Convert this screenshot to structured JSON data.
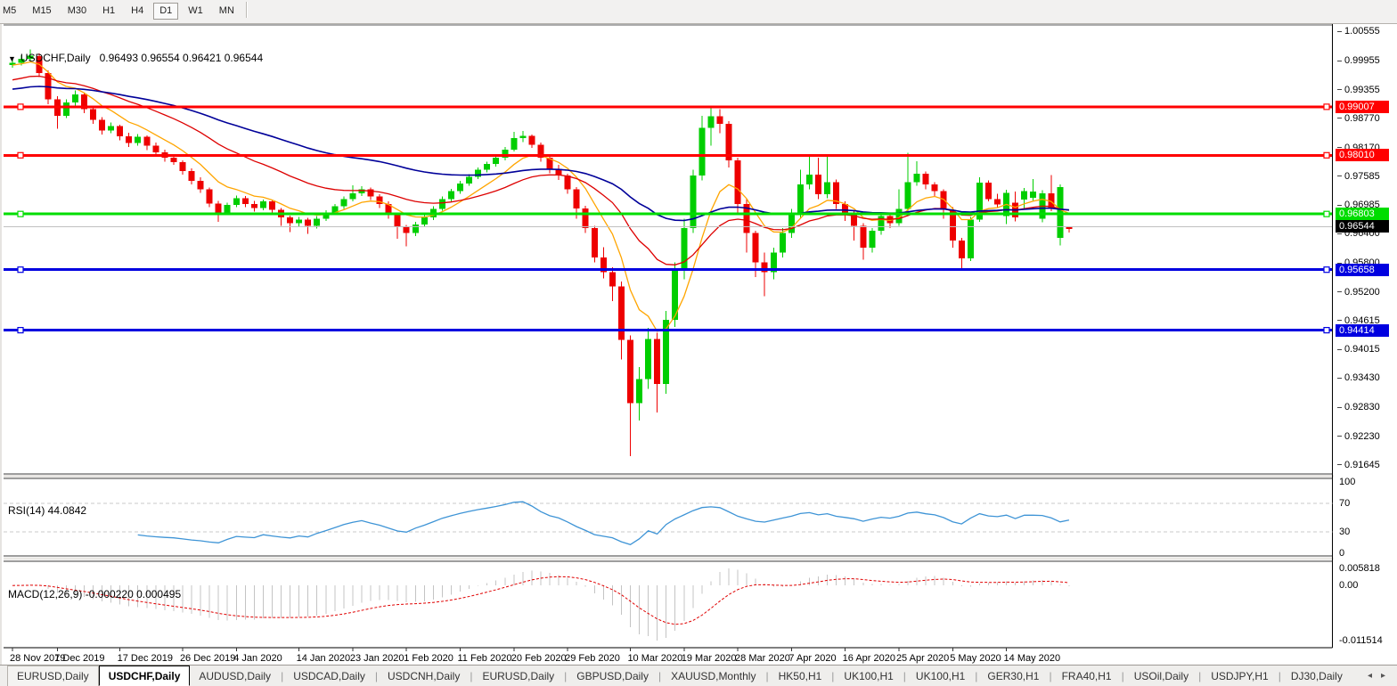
{
  "toolbar": {
    "timeframes": [
      "M5",
      "M15",
      "M30",
      "H1",
      "H4",
      "D1",
      "W1",
      "MN"
    ],
    "active_timeframe": "D1"
  },
  "title": {
    "marker_icon": "▼",
    "symbol": "USDCHF,Daily",
    "ohlc": "0.96493 0.96554 0.96421 0.96544"
  },
  "chart_data": {
    "type": "candlestick",
    "symbol": "USDCHF",
    "timeframe": "Daily",
    "ohlc_display": {
      "open": "0.96493",
      "high": "0.96554",
      "low": "0.96421",
      "close": "0.96544"
    },
    "price_axis": {
      "max": 1.0069,
      "ticks": [
        "1.00555",
        "0.99955",
        "0.99355",
        "0.98770",
        "0.98170",
        "0.97585",
        "0.96985",
        "0.96400",
        "0.95800",
        "0.95200",
        "0.94615",
        "0.94015",
        "0.93430",
        "0.92830",
        "0.92230",
        "0.91645"
      ]
    },
    "colors": {
      "bull": "#00ce00",
      "bear": "#ee0000",
      "wick_up": "#00ce00",
      "wick_down": "#ee0000",
      "current_line": "#c0c0c0",
      "current_badge": "#000000",
      "pane_border": "#3c3c3c",
      "rsi_line": "#3e94d6",
      "rsi_levels_color": "#c8c8c8",
      "macd_hist": "#c4c4c4",
      "macd_signal": "#e00000"
    },
    "hlines": [
      {
        "price": 0.99007,
        "label": "0.99007",
        "color": "#ff0000",
        "width": 3
      },
      {
        "price": 0.9801,
        "label": "0.98010",
        "color": "#ff0000",
        "width": 3
      },
      {
        "price": 0.96803,
        "label": "0.96803",
        "color": "#00dd00",
        "width": 3
      },
      {
        "price": 0.95658,
        "label": "0.95658",
        "color": "#0000e0",
        "width": 3
      },
      {
        "price": 0.94414,
        "label": "0.94414",
        "color": "#0000e0",
        "width": 3
      }
    ],
    "current_price": {
      "value": 0.96544,
      "label": "0.96544"
    },
    "moving_averages": [
      {
        "period": 8,
        "seed": 0.9985,
        "color": "#ffa500",
        "width": 1.3
      },
      {
        "period": 24,
        "seed": 0.9953,
        "color": "#dd0000",
        "width": 1.3
      },
      {
        "period": 55,
        "seed": 0.9935,
        "color": "#000099",
        "width": 1.6
      }
    ],
    "rsi": {
      "label": "RSI(14) 44.0842",
      "period": 14,
      "value": "44.0842",
      "levels": [
        70,
        30
      ],
      "scale_labels": [
        {
          "v": 100,
          "text": "100"
        },
        {
          "v": 70,
          "text": "70"
        },
        {
          "v": 30,
          "text": "30"
        },
        {
          "v": 0,
          "text": "0"
        }
      ]
    },
    "macd": {
      "label": "MACD(12,26,9) -0.000220 0.000495",
      "fast": 12,
      "slow": 26,
      "signal": 9,
      "values": [
        "-0.000220",
        "0.000495"
      ],
      "scale_labels": {
        "max": "0.005818",
        "zero": "0.00",
        "min": "-0.011514"
      }
    },
    "date_labels": [
      {
        "text": "28 Nov 2019",
        "bar": 0
      },
      {
        "text": "7 Dec 2019",
        "bar": 5
      },
      {
        "text": "17 Dec 2019",
        "bar": 12
      },
      {
        "text": "26 Dec 2019",
        "bar": 19
      },
      {
        "text": "4 Jan 2020",
        "bar": 25
      },
      {
        "text": "14 Jan 2020",
        "bar": 32
      },
      {
        "text": "23 Jan 2020",
        "bar": 38
      },
      {
        "text": "1 Feb 2020",
        "bar": 44
      },
      {
        "text": "11 Feb 2020",
        "bar": 50
      },
      {
        "text": "20 Feb 2020",
        "bar": 56
      },
      {
        "text": "29 Feb 2020",
        "bar": 62
      },
      {
        "text": "10 Mar 2020",
        "bar": 69
      },
      {
        "text": "19 Mar 2020",
        "bar": 75
      },
      {
        "text": "28 Mar 2020",
        "bar": 81
      },
      {
        "text": "7 Apr 2020",
        "bar": 87
      },
      {
        "text": "16 Apr 2020",
        "bar": 93
      },
      {
        "text": "25 Apr 2020",
        "bar": 99
      },
      {
        "text": "5 May 2020",
        "bar": 105
      },
      {
        "text": "14 May 2020",
        "bar": 111
      }
    ],
    "color_overrides": {
      "117": "up",
      "118": "down"
    },
    "candles": [
      [
        0.9987,
        1.0003,
        0.9981,
        0.9991
      ],
      [
        0.9991,
        1.0007,
        0.9986,
        0.9999
      ],
      [
        0.9999,
        1.0019,
        0.9995,
        1.0006
      ],
      [
        1.0005,
        1.001,
        0.9962,
        0.997
      ],
      [
        0.997,
        0.9976,
        0.9906,
        0.9916
      ],
      [
        0.9916,
        0.9922,
        0.9856,
        0.9882
      ],
      [
        0.9882,
        0.9916,
        0.9878,
        0.991
      ],
      [
        0.991,
        0.9934,
        0.9902,
        0.9926
      ],
      [
        0.9926,
        0.9929,
        0.9888,
        0.9896
      ],
      [
        0.9896,
        0.9903,
        0.9866,
        0.9874
      ],
      [
        0.9874,
        0.9879,
        0.9844,
        0.9852
      ],
      [
        0.9852,
        0.9868,
        0.9846,
        0.9861
      ],
      [
        0.9861,
        0.9864,
        0.9832,
        0.984
      ],
      [
        0.984,
        0.9847,
        0.9818,
        0.9826
      ],
      [
        0.9826,
        0.9845,
        0.9821,
        0.9839
      ],
      [
        0.9839,
        0.9842,
        0.9812,
        0.9821
      ],
      [
        0.9821,
        0.9827,
        0.9799,
        0.9807
      ],
      [
        0.9807,
        0.9813,
        0.9788,
        0.9796
      ],
      [
        0.9796,
        0.9803,
        0.9781,
        0.9787
      ],
      [
        0.9787,
        0.9791,
        0.9761,
        0.9769
      ],
      [
        0.9769,
        0.9774,
        0.9741,
        0.9748
      ],
      [
        0.9748,
        0.9756,
        0.9724,
        0.9731
      ],
      [
        0.9731,
        0.9735,
        0.9694,
        0.9702
      ],
      [
        0.9702,
        0.9707,
        0.9664,
        0.9683
      ],
      [
        0.9683,
        0.9704,
        0.9678,
        0.9699
      ],
      [
        0.9699,
        0.9718,
        0.9694,
        0.9713
      ],
      [
        0.9713,
        0.9717,
        0.9694,
        0.9701
      ],
      [
        0.9701,
        0.9707,
        0.9685,
        0.9693
      ],
      [
        0.9693,
        0.971,
        0.9688,
        0.9706
      ],
      [
        0.9706,
        0.9709,
        0.9682,
        0.9689
      ],
      [
        0.9689,
        0.9693,
        0.9656,
        0.9673
      ],
      [
        0.9673,
        0.9677,
        0.9643,
        0.9661
      ],
      [
        0.9661,
        0.9674,
        0.9654,
        0.9669
      ],
      [
        0.9669,
        0.9672,
        0.9639,
        0.9656
      ],
      [
        0.9656,
        0.9676,
        0.965,
        0.9671
      ],
      [
        0.9671,
        0.9688,
        0.9666,
        0.9683
      ],
      [
        0.9683,
        0.9701,
        0.9678,
        0.9696
      ],
      [
        0.9696,
        0.9716,
        0.9691,
        0.9711
      ],
      [
        0.9711,
        0.9739,
        0.9706,
        0.9723
      ],
      [
        0.9723,
        0.9737,
        0.9717,
        0.9731
      ],
      [
        0.9731,
        0.9735,
        0.9709,
        0.9716
      ],
      [
        0.9716,
        0.9721,
        0.9693,
        0.9701
      ],
      [
        0.9701,
        0.9706,
        0.9671,
        0.9679
      ],
      [
        0.9679,
        0.9683,
        0.9629,
        0.9653
      ],
      [
        0.9653,
        0.9658,
        0.9614,
        0.9641
      ],
      [
        0.9641,
        0.9664,
        0.9635,
        0.9659
      ],
      [
        0.9659,
        0.9679,
        0.9654,
        0.9673
      ],
      [
        0.9673,
        0.9696,
        0.9668,
        0.9691
      ],
      [
        0.9691,
        0.9716,
        0.9687,
        0.9711
      ],
      [
        0.9711,
        0.9732,
        0.9706,
        0.9727
      ],
      [
        0.9727,
        0.9748,
        0.9722,
        0.9743
      ],
      [
        0.9743,
        0.9762,
        0.9738,
        0.9757
      ],
      [
        0.9757,
        0.9776,
        0.9752,
        0.9771
      ],
      [
        0.9771,
        0.9788,
        0.9766,
        0.9783
      ],
      [
        0.9783,
        0.9801,
        0.9778,
        0.9796
      ],
      [
        0.9796,
        0.9818,
        0.9791,
        0.9813
      ],
      [
        0.9813,
        0.9849,
        0.9809,
        0.9836
      ],
      [
        0.9836,
        0.9851,
        0.9828,
        0.9841
      ],
      [
        0.9841,
        0.9844,
        0.9816,
        0.9823
      ],
      [
        0.9823,
        0.9827,
        0.9788,
        0.9796
      ],
      [
        0.9796,
        0.9801,
        0.9764,
        0.9773
      ],
      [
        0.9773,
        0.9781,
        0.975,
        0.9759
      ],
      [
        0.9759,
        0.9763,
        0.9722,
        0.9731
      ],
      [
        0.9731,
        0.9736,
        0.9671,
        0.9692
      ],
      [
        0.9692,
        0.9697,
        0.9641,
        0.9651
      ],
      [
        0.9651,
        0.9656,
        0.9581,
        0.9591
      ],
      [
        0.9591,
        0.9612,
        0.9548,
        0.9561
      ],
      [
        0.9561,
        0.9571,
        0.9501,
        0.9531
      ],
      [
        0.9531,
        0.9541,
        0.9381,
        0.9421
      ],
      [
        0.9421,
        0.9431,
        0.9182,
        0.9291
      ],
      [
        0.9291,
        0.9366,
        0.9256,
        0.9341
      ],
      [
        0.9341,
        0.9446,
        0.9321,
        0.9423
      ],
      [
        0.9423,
        0.9436,
        0.9272,
        0.9331
      ],
      [
        0.9331,
        0.9481,
        0.9311,
        0.9463
      ],
      [
        0.9463,
        0.9581,
        0.9448,
        0.9563
      ],
      [
        0.9563,
        0.9671,
        0.9546,
        0.9651
      ],
      [
        0.9651,
        0.9771,
        0.9641,
        0.9759
      ],
      [
        0.9759,
        0.9882,
        0.9749,
        0.9857
      ],
      [
        0.9857,
        0.9901,
        0.9821,
        0.9881
      ],
      [
        0.9881,
        0.9896,
        0.9846,
        0.9866
      ],
      [
        0.9866,
        0.9871,
        0.9776,
        0.9791
      ],
      [
        0.9791,
        0.9796,
        0.9681,
        0.9701
      ],
      [
        0.9701,
        0.9711,
        0.9601,
        0.9641
      ],
      [
        0.9641,
        0.9646,
        0.9551,
        0.9581
      ],
      [
        0.9581,
        0.9601,
        0.9511,
        0.9561
      ],
      [
        0.9561,
        0.9611,
        0.9546,
        0.9601
      ],
      [
        0.9601,
        0.9651,
        0.9591,
        0.9641
      ],
      [
        0.9641,
        0.9691,
        0.9631,
        0.9681
      ],
      [
        0.9681,
        0.9771,
        0.9671,
        0.9741
      ],
      [
        0.9741,
        0.9801,
        0.9731,
        0.9761
      ],
      [
        0.9761,
        0.9796,
        0.9711,
        0.9721
      ],
      [
        0.9721,
        0.9802,
        0.9713,
        0.9746
      ],
      [
        0.9746,
        0.9751,
        0.9691,
        0.9701
      ],
      [
        0.9701,
        0.9706,
        0.9666,
        0.9681
      ],
      [
        0.9681,
        0.9686,
        0.9626,
        0.9656
      ],
      [
        0.9656,
        0.9661,
        0.9586,
        0.9611
      ],
      [
        0.9611,
        0.9651,
        0.9601,
        0.9646
      ],
      [
        0.9646,
        0.9681,
        0.9638,
        0.9676
      ],
      [
        0.9676,
        0.9681,
        0.9651,
        0.9661
      ],
      [
        0.9661,
        0.9731,
        0.9656,
        0.9691
      ],
      [
        0.9691,
        0.9806,
        0.9686,
        0.9746
      ],
      [
        0.9746,
        0.9789,
        0.9738,
        0.9763
      ],
      [
        0.9763,
        0.9768,
        0.9731,
        0.9741
      ],
      [
        0.9741,
        0.9746,
        0.9716,
        0.9727
      ],
      [
        0.9727,
        0.9731,
        0.9671,
        0.9689
      ],
      [
        0.9689,
        0.9694,
        0.9611,
        0.9626
      ],
      [
        0.9626,
        0.9631,
        0.9569,
        0.9589
      ],
      [
        0.9589,
        0.9674,
        0.9584,
        0.9669
      ],
      [
        0.9669,
        0.9756,
        0.9664,
        0.9745
      ],
      [
        0.9745,
        0.9749,
        0.9706,
        0.9711
      ],
      [
        0.9711,
        0.9722,
        0.9693,
        0.97
      ],
      [
        0.9676,
        0.973,
        0.966,
        0.9724
      ],
      [
        0.9704,
        0.9726,
        0.9665,
        0.9673
      ],
      [
        0.971,
        0.9734,
        0.9692,
        0.9727
      ],
      [
        0.9714,
        0.9752,
        0.9708,
        0.9726
      ],
      [
        0.9671,
        0.9729,
        0.9663,
        0.9723
      ],
      [
        0.9723,
        0.976,
        0.9686,
        0.9691
      ],
      [
        0.9736,
        0.9741,
        0.9616,
        0.9631
      ],
      [
        0.96493,
        0.96554,
        0.96421,
        0.96544
      ]
    ]
  },
  "tabbar": {
    "tabs": [
      {
        "label": "EURUSD,Daily",
        "boxed": true
      },
      {
        "label": "USDCHF,Daily",
        "active": true
      },
      {
        "label": "AUDUSD,Daily"
      },
      {
        "label": "USDCAD,Daily"
      },
      {
        "label": "USDCNH,Daily"
      },
      {
        "label": "EURUSD,Daily"
      },
      {
        "label": "GBPUSD,Daily"
      },
      {
        "label": "XAUUSD,Monthly"
      },
      {
        "label": "HK50,H1"
      },
      {
        "label": "UK100,H1"
      },
      {
        "label": "UK100,H1"
      },
      {
        "label": "GER30,H1"
      },
      {
        "label": "FRA40,H1"
      },
      {
        "label": "USOil,Daily"
      },
      {
        "label": "USDJPY,H1"
      },
      {
        "label": "DJ30,Daily"
      }
    ],
    "nav_left": "◂",
    "nav_right": "▸"
  }
}
